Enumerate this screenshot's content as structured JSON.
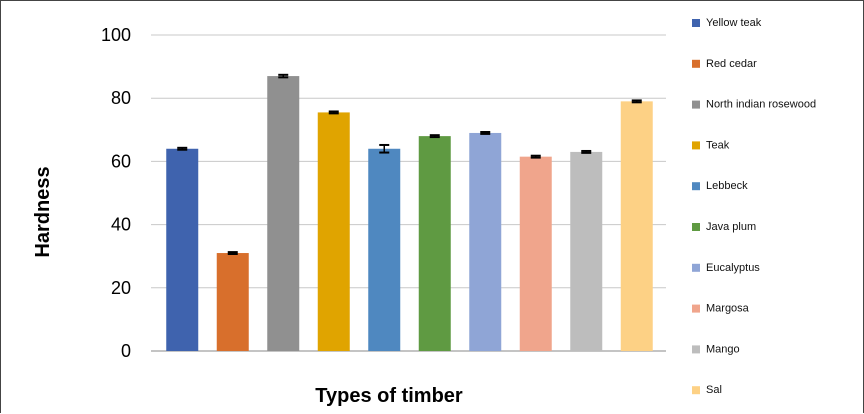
{
  "chart_data": {
    "type": "bar",
    "title": "",
    "xlabel": "Types of timber",
    "ylabel": "Hardness",
    "ylim": [
      0,
      100
    ],
    "yticks": [
      0,
      20,
      40,
      60,
      80,
      100
    ],
    "grid": true,
    "legend_position": "right",
    "series": [
      {
        "name": "Yellow teak",
        "value": 64,
        "error": 0.3,
        "color": "#3F63AE"
      },
      {
        "name": "Red cedar",
        "value": 31,
        "error": 0.3,
        "color": "#D86F2C"
      },
      {
        "name": "North indian rosewood",
        "value": 87,
        "error": 0.4,
        "color": "#909090"
      },
      {
        "name": "Teak",
        "value": 75.5,
        "error": 0.3,
        "color": "#E0A400"
      },
      {
        "name": "Lebbeck",
        "value": 64,
        "error": 1.2,
        "color": "#4F88C0"
      },
      {
        "name": "Java plum",
        "value": 68,
        "error": 0.3,
        "color": "#5F9A42"
      },
      {
        "name": "Eucalyptus",
        "value": 69,
        "error": 0.3,
        "color": "#8FA5D6"
      },
      {
        "name": "Margosa",
        "value": 61.5,
        "error": 0.3,
        "color": "#F0A58C"
      },
      {
        "name": "Mango",
        "value": 63,
        "error": 0.3,
        "color": "#BDBDBD"
      },
      {
        "name": "Sal",
        "value": 79,
        "error": 0.3,
        "color": "#FDD185"
      }
    ]
  }
}
